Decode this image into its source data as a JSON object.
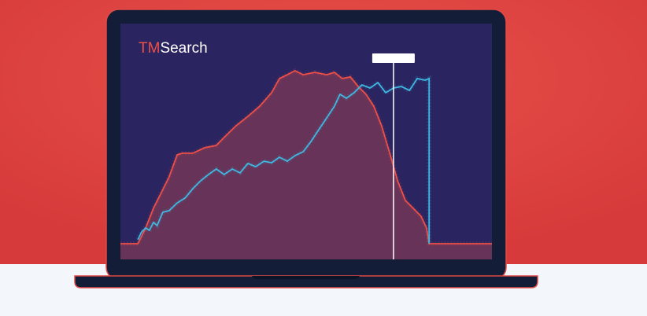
{
  "chart_data": {
    "type": "line",
    "brand": {
      "prefix": "TM",
      "name": "Search"
    },
    "xlim": [
      0,
      100
    ],
    "ylim": [
      0,
      100
    ],
    "cursor_x": 73.5,
    "series": [
      {
        "color": "#ee4f47",
        "fill": "#6e3558",
        "x": [
          0,
          4.7,
          6.8,
          8.9,
          11.0,
          13.1,
          15.3,
          16.7,
          19.5,
          22.7,
          25.8,
          27.9,
          31.1,
          34.3,
          37.5,
          40.7,
          42.8,
          44.9,
          47.0,
          49.2,
          52.3,
          55.5,
          57.6,
          59.7,
          61.9,
          64.0,
          66.1,
          68.2,
          70.3,
          72.5,
          74.6,
          76.7,
          78.8,
          80.9,
          82.4,
          83.1,
          100
        ],
        "values": [
          0,
          0,
          9.1,
          20.5,
          29.5,
          38.6,
          51.4,
          52.3,
          52.3,
          55.5,
          56.8,
          61.4,
          68.2,
          73.6,
          79.5,
          87.3,
          95.5,
          97.7,
          100,
          97.7,
          99.1,
          97.7,
          99.1,
          95.5,
          96.4,
          90.9,
          86.4,
          79.5,
          68.2,
          52.3,
          36.4,
          25,
          20.5,
          15.9,
          9.1,
          0,
          0
        ]
      },
      {
        "color": "#3fb8e2",
        "x": [
          4.7,
          5.7,
          6.8,
          7.8,
          8.9,
          9.9,
          11.4,
          13.1,
          15.3,
          17.4,
          19.5,
          21.6,
          23.7,
          25.8,
          27.9,
          30.1,
          32.2,
          34.3,
          36.4,
          38.6,
          40.7,
          42.8,
          44.9,
          47.0,
          49.2,
          51.3,
          53.4,
          55.5,
          57.6,
          59.1,
          60.8,
          62.9,
          65.0,
          67.2,
          69.3,
          71.4,
          73.5,
          75.6,
          77.8,
          79.9,
          82.0,
          83.1,
          83.1
        ],
        "values": [
          2.3,
          6.8,
          9.1,
          7.7,
          12.3,
          10.5,
          18.2,
          19.1,
          23.6,
          26.4,
          31.8,
          36.4,
          40,
          43.2,
          40,
          43.2,
          40.9,
          46.4,
          44.5,
          47.7,
          46.8,
          50,
          47.7,
          50.9,
          53.2,
          59.1,
          65.9,
          72.7,
          79.5,
          86.4,
          84.1,
          87.3,
          91.8,
          90,
          93.2,
          87.3,
          90,
          90.9,
          88.6,
          95.5,
          94.5,
          95.5,
          0
        ]
      }
    ]
  }
}
